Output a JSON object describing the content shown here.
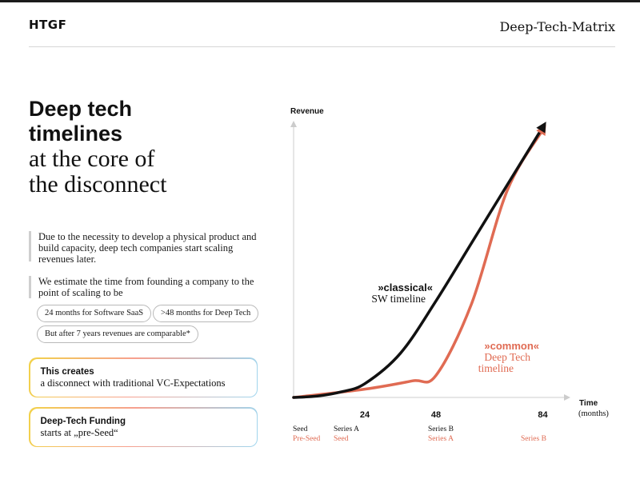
{
  "header": {
    "logo": "HTGF",
    "doc_title": "Deep-Tech-Matrix"
  },
  "headline": {
    "line1": "Deep tech",
    "line2": "timelines",
    "line3": "at the core of",
    "line4": "the disconnect"
  },
  "body": {
    "quote1": "Due to the necessity to develop a physical product and build capacity, deep tech companies start scaling revenues later.",
    "quote2": "We estimate the time from founding a company to the point of scaling to be",
    "pill1": "24 months for Software SaaS",
    "pill2": ">48 months for Deep Tech",
    "pill3": "But after 7 years revenues are comparable*"
  },
  "boxes": {
    "box1_title": "This creates",
    "box1_text": "a disconnect with traditional VC-Expectations",
    "box2_title": "Deep-Tech Funding",
    "box2_text": "starts at „pre-Seed“"
  },
  "colors": {
    "classical": "#111111",
    "common": "#e06b53",
    "axis": "#cccccc"
  },
  "chart_data": {
    "type": "line",
    "title": "",
    "ylabel": "Revenue",
    "xlabel": "Time",
    "xlabel_unit": "(months)",
    "xlim": [
      0,
      96
    ],
    "ylim": [
      0,
      100
    ],
    "ticks": [
      "24",
      "48",
      "84"
    ],
    "tick_values": [
      24,
      48,
      84
    ],
    "stage_rows": {
      "classical": [
        "Seed",
        "Series A",
        "Series B"
      ],
      "common": [
        "Pre-Seed",
        "Seed",
        "Series A",
        "Series B"
      ]
    },
    "series": [
      {
        "name": "classical",
        "label_bold": "»classical«",
        "label_text": "SW timeline",
        "x": [
          0,
          8,
          16,
          24,
          36,
          48,
          60,
          72,
          84
        ],
        "y": [
          0,
          0.5,
          2,
          5,
          16,
          35,
          56,
          77,
          98
        ]
      },
      {
        "name": "common",
        "label_bold": "»common«",
        "label_text": "Deep Tech timeline",
        "x": [
          0,
          24,
          40,
          48,
          60,
          72,
          84
        ],
        "y": [
          0,
          3,
          6,
          8,
          34,
          75,
          97
        ]
      }
    ]
  }
}
